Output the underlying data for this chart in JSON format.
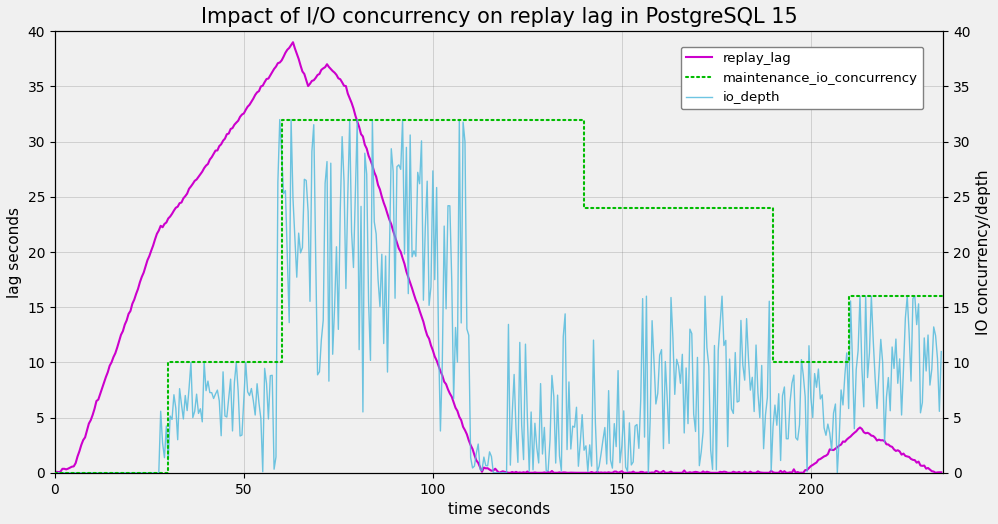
{
  "title": "Impact of I/O concurrency on replay lag in PostgreSQL 15",
  "xlabel": "time seconds",
  "ylabel_left": "lag seconds",
  "ylabel_right": "IO concurrency/depth",
  "xlim": [
    0,
    235
  ],
  "ylim_left": [
    0,
    40
  ],
  "ylim_right": [
    0,
    40
  ],
  "yticks_left": [
    0,
    5,
    10,
    15,
    20,
    25,
    30,
    35,
    40
  ],
  "yticks_right": [
    0,
    5,
    10,
    15,
    20,
    25,
    30,
    35,
    40
  ],
  "xticks": [
    0,
    50,
    100,
    150,
    200
  ],
  "replay_lag_color": "#CC00CC",
  "maintenance_io_color": "#00BB00",
  "io_depth_color": "#55BBDD",
  "bg_color": "#F0F0F0",
  "title_fontsize": 15,
  "axis_label_fontsize": 11,
  "seed": 12345
}
